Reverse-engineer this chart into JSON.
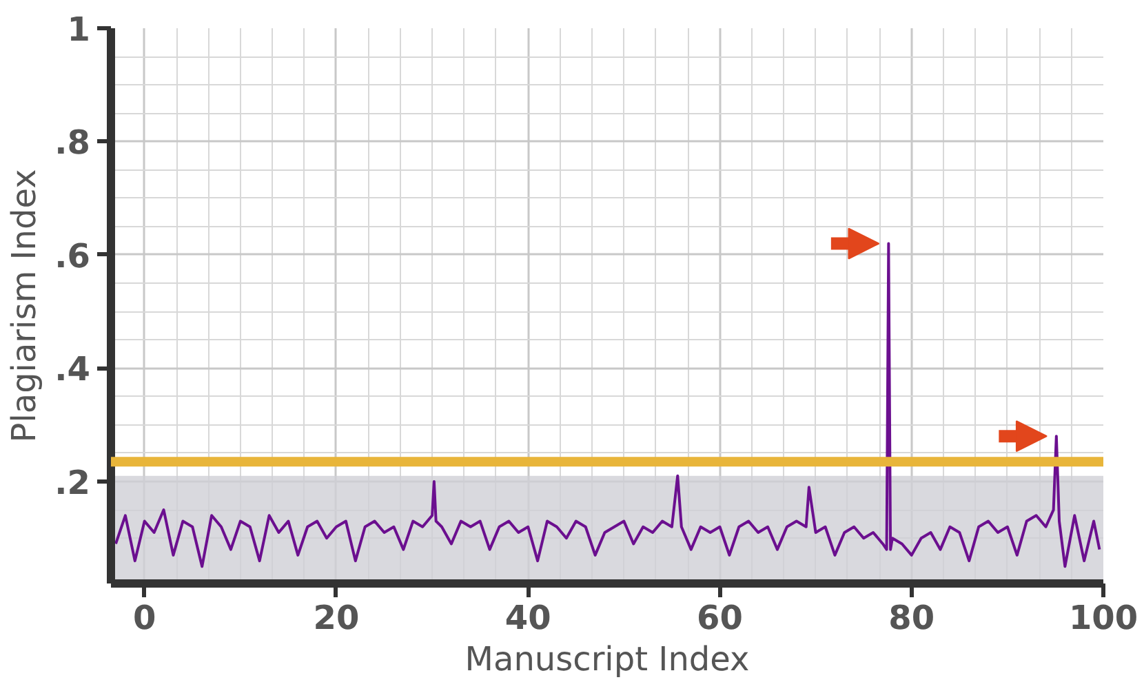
{
  "chart_data": {
    "type": "line",
    "xlabel": "Manuscript Index",
    "ylabel": "Plagiarism Index",
    "xlim": [
      -3.5,
      100
    ],
    "ylim": [
      0.02,
      1
    ],
    "xticks": [
      0,
      20,
      40,
      60,
      80,
      100,
      {
        "value": 3.33,
        "label": null
      },
      {
        "value": 6.67,
        "label": null
      },
      {
        "value": 10,
        "label": null
      },
      {
        "value": 13.33,
        "label": null
      },
      {
        "value": 16.67,
        "label": null
      },
      {
        "value": 23.33,
        "label": null
      },
      {
        "value": 26.67,
        "label": null
      },
      {
        "value": 30,
        "label": null
      },
      {
        "value": 33.33,
        "label": null
      },
      {
        "value": 36.67,
        "label": null
      },
      {
        "value": 43.33,
        "label": null
      },
      {
        "value": 46.67,
        "label": null
      },
      {
        "value": 50,
        "label": null
      },
      {
        "value": 53.33,
        "label": null
      },
      {
        "value": 56.67,
        "label": null
      },
      {
        "value": 63.33,
        "label": null
      },
      {
        "value": 66.67,
        "label": null
      },
      {
        "value": 70,
        "label": null
      },
      {
        "value": 73.33,
        "label": null
      },
      {
        "value": 76.67,
        "label": null
      },
      {
        "value": 83.33,
        "label": null
      },
      {
        "value": 86.67,
        "label": null
      },
      {
        "value": 90,
        "label": null
      },
      {
        "value": 93.33,
        "label": null
      },
      {
        "value": 96.67,
        "label": null
      }
    ],
    "yticks": [
      {
        "value": 0.2,
        "label": ".2"
      },
      {
        "value": 0.4,
        "label": ".4"
      },
      {
        "value": 0.6,
        "label": ".6"
      },
      {
        "value": 0.8,
        "label": ".8"
      },
      1,
      {
        "value": 0.1,
        "label": null
      },
      {
        "value": 0.15,
        "label": null
      },
      {
        "value": 0.25,
        "label": null
      },
      {
        "value": 0.3,
        "label": null
      },
      {
        "value": 0.35,
        "label": null
      },
      {
        "value": 0.45,
        "label": null
      },
      {
        "value": 0.5,
        "label": null
      },
      {
        "value": 0.55,
        "label": null
      },
      {
        "value": 0.65,
        "label": null
      },
      {
        "value": 0.7,
        "label": null
      },
      {
        "value": 0.75,
        "label": null
      },
      {
        "value": 0.85,
        "label": null
      },
      {
        "value": 0.9,
        "label": null
      },
      {
        "value": 0.95,
        "label": null
      }
    ],
    "grid": true,
    "marker": "none",
    "line_style": "solid",
    "ref_lines": [
      {
        "axis": "y",
        "value": 0.235,
        "label": null,
        "color": "#e8b53a"
      }
    ],
    "bands": [
      {
        "axis": "y",
        "from": 0.02,
        "to": 0.21,
        "label": null,
        "color": "#cfcfd6"
      }
    ],
    "series": [
      {
        "color": "#6b0f8f",
        "x": [
          -3,
          -2,
          -1,
          0,
          1,
          2,
          3,
          4,
          5,
          6,
          7,
          8,
          9,
          10,
          11,
          12,
          13,
          14,
          15,
          16,
          17,
          18,
          19,
          20,
          21,
          22,
          23,
          24,
          25,
          26,
          27,
          28,
          29,
          30,
          30.2,
          30.4,
          31,
          32,
          33,
          34,
          35,
          36,
          37,
          38,
          39,
          40,
          41,
          42,
          43,
          44,
          45,
          46,
          47,
          48,
          49,
          50,
          51,
          52,
          53,
          54,
          55,
          55.6,
          56,
          57,
          58,
          59,
          60,
          61,
          62,
          63,
          64,
          65,
          66,
          67,
          68,
          69,
          69.3,
          70,
          71,
          72,
          73,
          74,
          75,
          76,
          77,
          77.4,
          77.6,
          77.8,
          78,
          79,
          80,
          81,
          82,
          83,
          84,
          85,
          86,
          87,
          88,
          89,
          90,
          91,
          92,
          93,
          94,
          94.8,
          95.1,
          95.4,
          96,
          97,
          98,
          99,
          99.6
        ],
        "values": [
          0.09,
          0.14,
          0.06,
          0.13,
          0.11,
          0.15,
          0.07,
          0.13,
          0.12,
          0.05,
          0.14,
          0.12,
          0.08,
          0.13,
          0.12,
          0.06,
          0.14,
          0.11,
          0.13,
          0.07,
          0.12,
          0.13,
          0.1,
          0.12,
          0.13,
          0.06,
          0.12,
          0.13,
          0.11,
          0.12,
          0.08,
          0.13,
          0.12,
          0.14,
          0.2,
          0.13,
          0.12,
          0.09,
          0.13,
          0.12,
          0.13,
          0.08,
          0.12,
          0.13,
          0.11,
          0.12,
          0.06,
          0.13,
          0.12,
          0.1,
          0.13,
          0.12,
          0.07,
          0.11,
          0.12,
          0.13,
          0.09,
          0.12,
          0.11,
          0.13,
          0.12,
          0.21,
          0.12,
          0.08,
          0.12,
          0.11,
          0.12,
          0.07,
          0.12,
          0.13,
          0.11,
          0.12,
          0.08,
          0.12,
          0.13,
          0.12,
          0.19,
          0.11,
          0.12,
          0.07,
          0.11,
          0.12,
          0.1,
          0.11,
          0.09,
          0.08,
          0.62,
          0.08,
          0.1,
          0.09,
          0.07,
          0.1,
          0.11,
          0.08,
          0.12,
          0.11,
          0.06,
          0.12,
          0.13,
          0.11,
          0.12,
          0.07,
          0.13,
          0.14,
          0.12,
          0.15,
          0.28,
          0.13,
          0.05,
          0.14,
          0.06,
          0.13,
          0.08
        ]
      }
    ]
  }
}
